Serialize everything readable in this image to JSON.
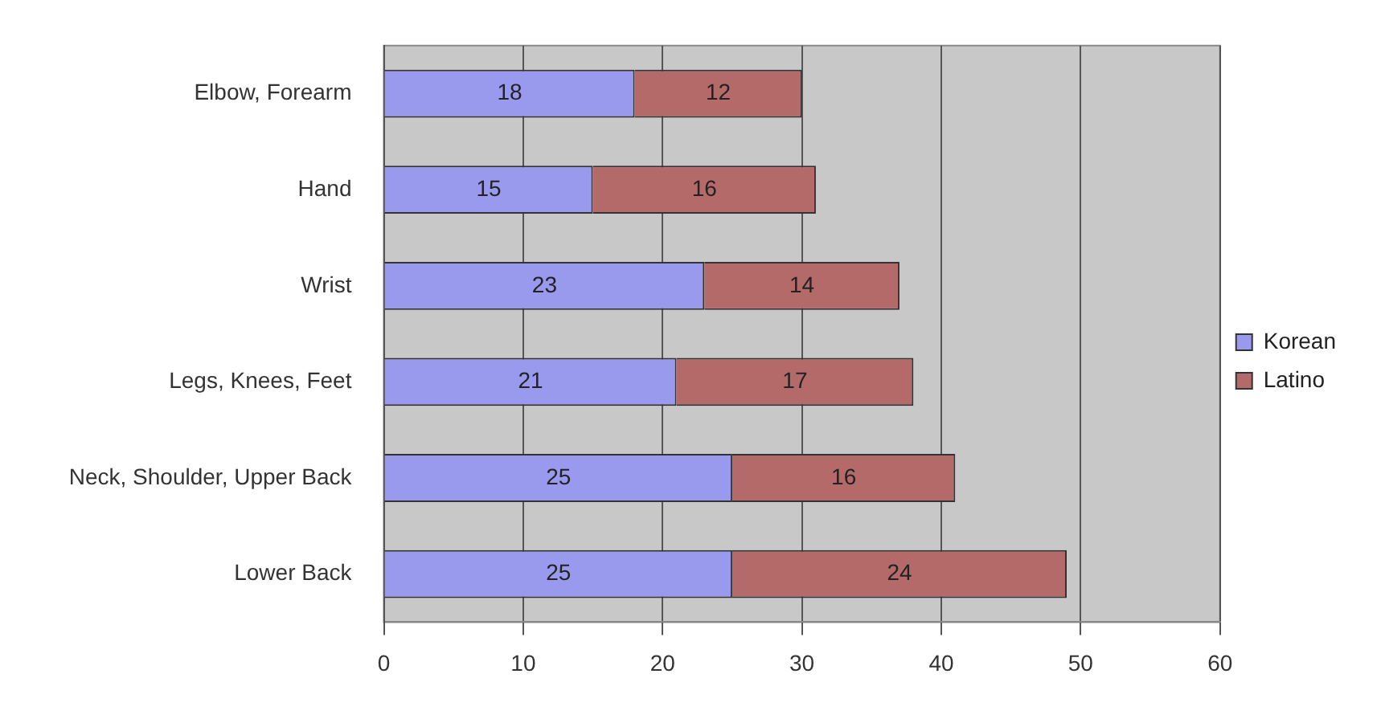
{
  "chart_data": {
    "type": "bar",
    "orientation": "horizontal",
    "stacked": true,
    "categories": [
      "Elbow, Forearm",
      "Hand",
      "Wrist",
      "Legs, Knees, Feet",
      "Neck, Shoulder, Upper Back",
      "Lower Back"
    ],
    "series": [
      {
        "name": "Korean",
        "color": "#9999ee",
        "values": [
          18,
          15,
          23,
          21,
          25,
          25
        ]
      },
      {
        "name": "Latino",
        "color": "#b56a6a",
        "values": [
          12,
          16,
          14,
          17,
          16,
          24
        ]
      }
    ],
    "xlim": [
      0,
      60
    ],
    "xticks": [
      0,
      10,
      20,
      30,
      40,
      50,
      60
    ],
    "grid": "x",
    "legend": "right",
    "data_labels": true
  }
}
